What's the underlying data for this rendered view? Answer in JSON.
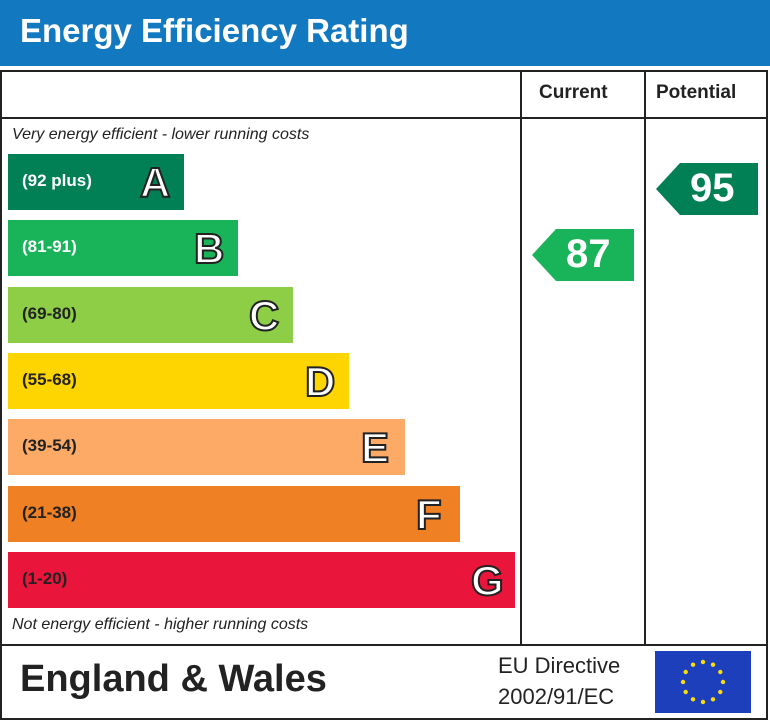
{
  "title": "Energy Efficiency Rating",
  "columns": {
    "current": "Current",
    "potential": "Potential"
  },
  "notes": {
    "top": "Very energy efficient - lower running costs",
    "bottom": "Not energy efficient - higher running costs"
  },
  "chart_data": {
    "type": "bar",
    "title": "Energy Efficiency Rating",
    "categories": [
      "A",
      "B",
      "C",
      "D",
      "E",
      "F",
      "G"
    ],
    "ranges": [
      "(92 plus)",
      "(81-91)",
      "(69-80)",
      "(55-68)",
      "(39-54)",
      "(21-38)",
      "(1-20)"
    ],
    "colors": [
      "#008054",
      "#19b459",
      "#8dce46",
      "#ffd500",
      "#fcaa65",
      "#ef8023",
      "#e9153b"
    ],
    "series": [
      {
        "name": "Current",
        "value": 87,
        "band": "B",
        "color": "#19b459"
      },
      {
        "name": "Potential",
        "value": 95,
        "band": "A",
        "color": "#008054"
      }
    ]
  },
  "footer": {
    "region": "England & Wales",
    "directive_line1": "EU Directive",
    "directive_line2": "2002/91/EC"
  }
}
